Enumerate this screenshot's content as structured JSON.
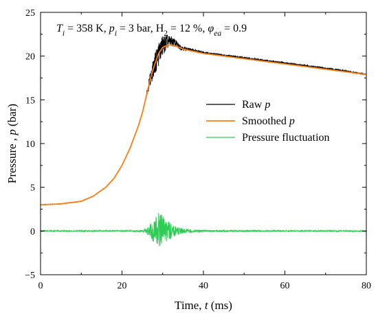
{
  "chart_data": {
    "type": "line",
    "title": "",
    "annotation": {
      "parts": [
        {
          "t": "T",
          "style": "italic"
        },
        {
          "t": "i",
          "style": "italic-sub"
        },
        {
          "t": " = 358 K, ",
          "style": "normal"
        },
        {
          "t": "p",
          "style": "italic"
        },
        {
          "t": "i",
          "style": "italic-sub"
        },
        {
          "t": " = 3 bar, H",
          "style": "normal"
        },
        {
          "t": "2",
          "style": "sub"
        },
        {
          "t": " = 12 %, ",
          "style": "normal"
        },
        {
          "t": "φ",
          "style": "italic"
        },
        {
          "t": "ea",
          "style": "italic-sub"
        },
        {
          "t": " = 0.9",
          "style": "normal"
        }
      ]
    },
    "xlabel": {
      "prefix": "Time, ",
      "symbol": "t",
      "suffix": " (ms)"
    },
    "ylabel": {
      "prefix": "Pressure , ",
      "symbol": "p",
      "suffix": " (bar)"
    },
    "xlim": [
      0,
      80
    ],
    "ylim": [
      -5,
      25
    ],
    "xticks": [
      0,
      20,
      40,
      60,
      80
    ],
    "yticks": [
      -5,
      0,
      5,
      10,
      15,
      20,
      25
    ],
    "grid": false,
    "legend_position": "center-right",
    "series": [
      {
        "name": "Raw p",
        "name_parts": [
          {
            "t": "Raw ",
            "style": "normal"
          },
          {
            "t": "p",
            "style": "italic"
          }
        ],
        "color": "#000000",
        "x": [
          0,
          5,
          10,
          13,
          16,
          18,
          20,
          22,
          24,
          25,
          26,
          27,
          28,
          29,
          30,
          31,
          32,
          33,
          34,
          35,
          36,
          38,
          40,
          45,
          50,
          55,
          60,
          65,
          70,
          75,
          80
        ],
        "y": [
          3.0,
          3.1,
          3.4,
          4.0,
          5.0,
          6.0,
          7.5,
          9.5,
          12.0,
          13.5,
          15.5,
          17.5,
          19.0,
          20.3,
          21.2,
          21.6,
          21.7,
          21.5,
          21.1,
          20.9,
          20.8,
          20.6,
          20.4,
          20.1,
          19.8,
          19.5,
          19.2,
          18.9,
          18.6,
          18.3,
          17.9
        ],
        "fluct_band": [
          [
            26,
            0.3
          ],
          [
            27,
            0.8
          ],
          [
            28,
            1.2
          ],
          [
            29,
            1.5
          ],
          [
            30,
            1.2
          ],
          [
            31,
            0.9
          ],
          [
            32,
            0.6
          ],
          [
            34,
            0.35
          ],
          [
            36,
            0.2
          ],
          [
            40,
            0.12
          ],
          [
            80,
            0.08
          ]
        ]
      },
      {
        "name": "Smoothed p",
        "name_parts": [
          {
            "t": "Smoothed ",
            "style": "normal"
          },
          {
            "t": "p",
            "style": "italic"
          }
        ],
        "color": "#ff7f0e",
        "x": [
          0,
          5,
          10,
          13,
          16,
          18,
          20,
          22,
          24,
          25,
          26,
          27,
          28,
          29,
          30,
          31,
          32,
          33,
          34,
          35,
          36,
          38,
          40,
          45,
          50,
          55,
          60,
          65,
          70,
          75,
          80
        ],
        "y": [
          3.0,
          3.1,
          3.4,
          4.0,
          5.0,
          6.0,
          7.5,
          9.5,
          12.0,
          13.5,
          15.5,
          17.5,
          19.0,
          20.3,
          21.0,
          21.2,
          21.3,
          21.2,
          21.0,
          20.8,
          20.7,
          20.5,
          20.3,
          20.0,
          19.7,
          19.4,
          19.1,
          18.8,
          18.5,
          18.2,
          17.9
        ]
      },
      {
        "name": "Pressure fluctuation",
        "name_parts": [
          {
            "t": "Pressure fluctuation",
            "style": "normal"
          }
        ],
        "color": "#2ecc55",
        "x": [
          0,
          20,
          25,
          26,
          27,
          28,
          29,
          30,
          31,
          32,
          33,
          34,
          35,
          36,
          38,
          40,
          80
        ],
        "amplitude": [
          0.08,
          0.08,
          0.1,
          0.3,
          0.9,
          1.4,
          2.1,
          1.8,
          1.2,
          0.9,
          0.6,
          0.4,
          0.3,
          0.22,
          0.15,
          0.1,
          0.08
        ]
      }
    ]
  }
}
